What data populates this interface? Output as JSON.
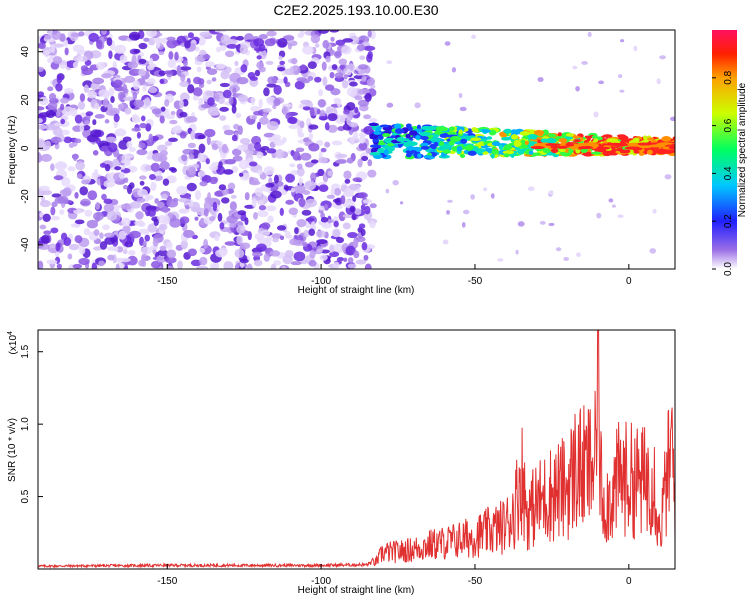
{
  "title": "C2E2.2025.193.10.00.E30",
  "chart_data": [
    {
      "type": "heatmap",
      "title": "C2E2.2025.193.10.00.E30",
      "xlabel": "Height of straight line (km)",
      "ylabel": "Frequency (Hz)",
      "xlim": [
        -192,
        15
      ],
      "ylim": [
        -50,
        49
      ],
      "xticks": [
        -150,
        -100,
        -50,
        0
      ],
      "yticks": [
        -40,
        -20,
        0,
        20,
        40
      ],
      "colorbar": {
        "label": "Normalized spectral amplitude",
        "range": [
          0,
          1
        ],
        "ticks": [
          "0.0",
          "0.2",
          "0.4",
          "0.6",
          "0.8"
        ],
        "tick_values": [
          0,
          0.2,
          0.4,
          0.6,
          0.8
        ]
      },
      "regions": [
        {
          "x": [
            -192,
            -83
          ],
          "y": [
            -50,
            49
          ],
          "description": "broadband noise",
          "amplitude": [
            0.05,
            0.25
          ]
        },
        {
          "x": [
            -83,
            15
          ],
          "y": [
            -8,
            12
          ],
          "description": "signal band near 0 Hz, slightly decreasing with height",
          "amplitude": [
            0.2,
            0.95
          ]
        }
      ],
      "colors": {
        "noise": "#6a2be0",
        "low": "#9a70e8",
        "high": "#ff0000"
      }
    },
    {
      "type": "line",
      "xlabel": "Height of straight line (km)",
      "ylabel": "SNR (10 * v/v)",
      "multiplier": "(x10",
      "multiplier_exp": "4",
      "xlim": [
        -192,
        15
      ],
      "ylim": [
        0,
        16500
      ],
      "xticks": [
        -150,
        -100,
        -50,
        0
      ],
      "yticks": [
        5000,
        10000,
        15000
      ],
      "ytick_labels": [
        "0.5",
        "1.0",
        "1.5"
      ],
      "line_color": "#e03030",
      "series": [
        {
          "x": [
            -192,
            -150,
            -100,
            -85,
            -82,
            -80,
            -75,
            -70,
            -65,
            -60,
            -55,
            -50,
            -45,
            -40,
            -37,
            -35,
            -33,
            -30,
            -25,
            -20,
            -17,
            -15,
            -12,
            -10.5,
            -10,
            -9.5,
            -8,
            -5,
            -3,
            0,
            5,
            8,
            10,
            12,
            14,
            15
          ],
          "values": [
            200,
            250,
            250,
            300,
            700,
            1500,
            1600,
            1800,
            2200,
            2400,
            2700,
            3000,
            3500,
            4000,
            5500,
            9000,
            5000,
            6000,
            7000,
            7500,
            9500,
            9000,
            9500,
            10000,
            16500,
            9000,
            6000,
            7000,
            8500,
            8200,
            8000,
            9000,
            3200,
            7500,
            11000,
            6500
          ]
        }
      ]
    }
  ]
}
